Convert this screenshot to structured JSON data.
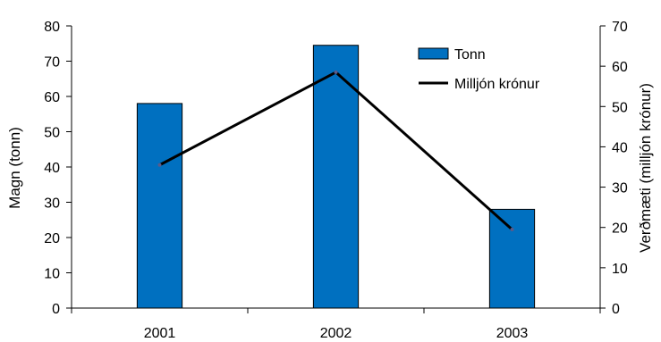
{
  "chart_data": {
    "type": "bar",
    "categories": [
      "2001",
      "2002",
      "2003"
    ],
    "series": [
      {
        "name": "Tonn",
        "type": "bar",
        "axis": "left",
        "values": [
          58,
          74.5,
          28
        ],
        "color": "#0070C0"
      },
      {
        "name": "Milljón krónur",
        "type": "line",
        "axis": "right",
        "values": [
          35.5,
          58.5,
          19.5
        ],
        "color": "#000000"
      }
    ],
    "ylabel": "Magn (tonn)",
    "y2label": "Verðmæti (milljón krónur)",
    "ylim": [
      0,
      80
    ],
    "y2lim": [
      0,
      70
    ],
    "yticks": [
      "0",
      "10",
      "20",
      "30",
      "40",
      "50",
      "60",
      "70",
      "80"
    ],
    "y2ticks": [
      "0",
      "10",
      "20",
      "30",
      "40",
      "50",
      "60",
      "70"
    ],
    "grid": false,
    "legend": {
      "position": "top-right"
    }
  }
}
